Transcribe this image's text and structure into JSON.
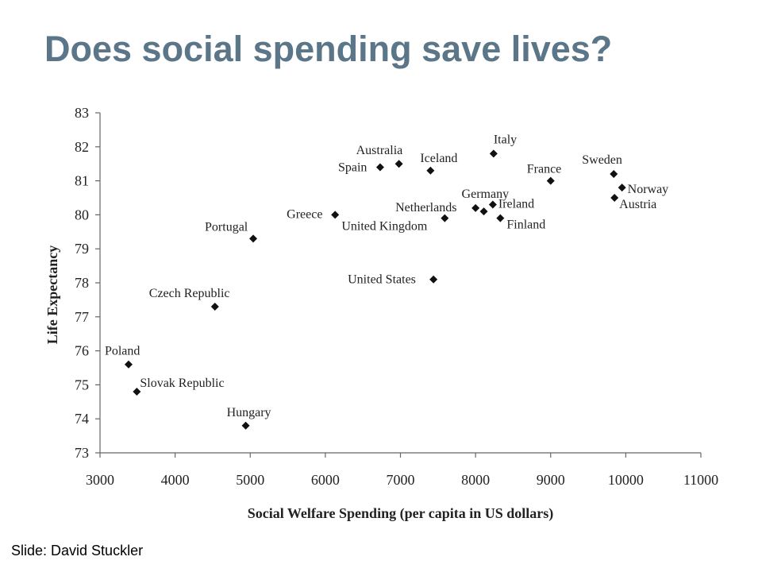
{
  "slide": {
    "title": "Does social spending save lives?",
    "footer": "Slide:  David Stuckler"
  },
  "chart_data": {
    "type": "scatter",
    "xlabel": "Social Welfare Spending (per capita in US dollars)",
    "ylabel": "Life Expectancy",
    "xlim": [
      3000,
      11000
    ],
    "ylim": [
      73,
      83
    ],
    "xticks": [
      3000,
      4000,
      5000,
      6000,
      7000,
      8000,
      9000,
      10000,
      11000
    ],
    "yticks": [
      73,
      74,
      75,
      76,
      77,
      78,
      79,
      80,
      81,
      82,
      83
    ],
    "grid": false,
    "marker": "diamond",
    "points": [
      {
        "label": "Poland",
        "x": 3380,
        "y": 75.6
      },
      {
        "label": "Slovak Republic",
        "x": 3490,
        "y": 74.8
      },
      {
        "label": "Czech Republic",
        "x": 4530,
        "y": 77.3
      },
      {
        "label": "Hungary",
        "x": 4940,
        "y": 73.8
      },
      {
        "label": "Portugal",
        "x": 5040,
        "y": 79.3
      },
      {
        "label": "Greece",
        "x": 6130,
        "y": 80.0
      },
      {
        "label": "Spain",
        "x": 6730,
        "y": 81.4
      },
      {
        "label": "Australia",
        "x": 6980,
        "y": 81.5
      },
      {
        "label": "Iceland",
        "x": 7400,
        "y": 81.3
      },
      {
        "label": "United States",
        "x": 7440,
        "y": 78.1
      },
      {
        "label": "United Kingdom",
        "x": 7590,
        "y": 79.9
      },
      {
        "label": "Netherlands",
        "x": 8000,
        "y": 80.2
      },
      {
        "label": "Germany",
        "x": 8110,
        "y": 80.1
      },
      {
        "label": "Ireland",
        "x": 8230,
        "y": 80.3
      },
      {
        "label": "Italy",
        "x": 8240,
        "y": 81.8
      },
      {
        "label": "Finland",
        "x": 8330,
        "y": 79.9
      },
      {
        "label": "France",
        "x": 9000,
        "y": 81.0
      },
      {
        "label": "Sweden",
        "x": 9840,
        "y": 81.2
      },
      {
        "label": "Austria",
        "x": 9850,
        "y": 80.5
      },
      {
        "label": "Norway",
        "x": 9950,
        "y": 80.8
      }
    ]
  }
}
